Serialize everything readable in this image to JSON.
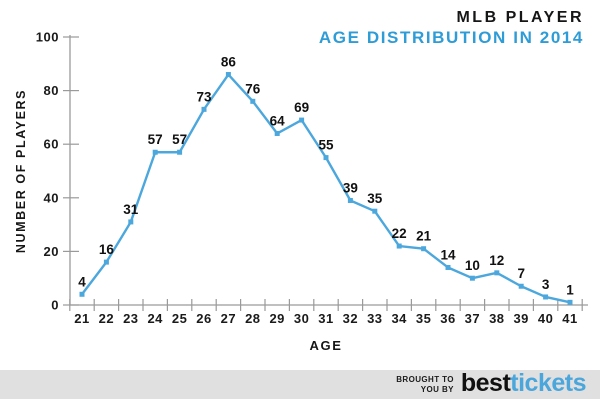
{
  "header": {
    "title_line1": "MLB PLAYER",
    "title_line2": "AGE DISTRIBUTION IN 2014"
  },
  "chart_data": {
    "type": "line",
    "title": "MLB PLAYER AGE DISTRIBUTION IN 2014",
    "x": [
      21,
      22,
      23,
      24,
      25,
      26,
      27,
      28,
      29,
      30,
      31,
      32,
      33,
      34,
      35,
      36,
      37,
      38,
      39,
      40,
      41
    ],
    "values": [
      4,
      16,
      31,
      57,
      57,
      73,
      86,
      76,
      64,
      69,
      55,
      39,
      35,
      22,
      21,
      14,
      10,
      12,
      7,
      3,
      1
    ],
    "xlabel": "AGE",
    "ylabel": "NUMBER OF PLAYERS",
    "ylim": [
      0,
      100
    ],
    "yticks": [
      0,
      20,
      40,
      60,
      80,
      100
    ],
    "grid": false,
    "legend": null,
    "marker": "square",
    "data_labels": true
  },
  "footer": {
    "brought_line1": "BROUGHT TO",
    "brought_line2": "YOU BY",
    "logo_best": "best",
    "logo_tickets": "tickets"
  },
  "colors": {
    "accent_blue": "#2E9CD6",
    "line_blue": "#4CA7DD",
    "logo_blue": "#4BA6DB",
    "footer_bg": "#E0E0E0",
    "axis_gray": "#9a9a9a",
    "text_dark": "#161616"
  }
}
